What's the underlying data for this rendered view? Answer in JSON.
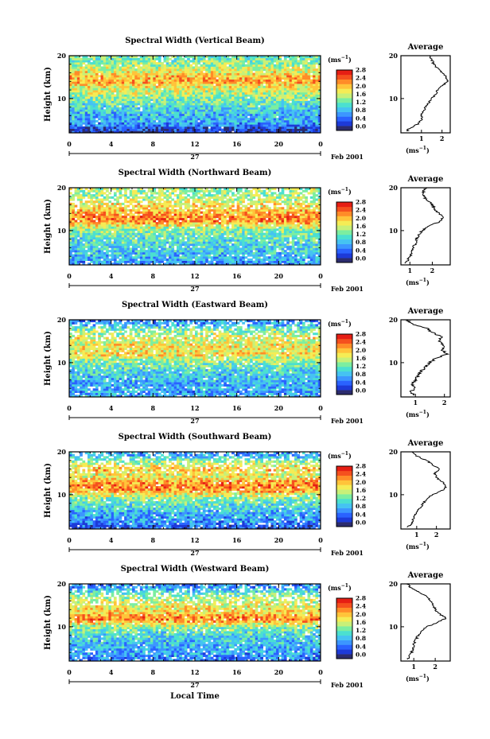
{
  "figure": {
    "colorbar_ticks": [
      "2.8",
      "2.4",
      "2.0",
      "1.6",
      "1.2",
      "0.8",
      "0.4",
      "0.0"
    ],
    "colorbar_unit": "(ms",
    "unit_exp": "−1",
    "unit_close": ")",
    "avg_title": "Average",
    "height_label": "Height (km)",
    "time_ticks": [
      "0",
      "4",
      "8",
      "12",
      "16",
      "20",
      "0"
    ],
    "y_ticks": [
      "20",
      "10"
    ],
    "date_day": "27",
    "date_label": "Feb 2001",
    "xlabel": "Local Time",
    "colors": [
      "#2c2c6e",
      "#1d3ad8",
      "#2a62ff",
      "#3c96ff",
      "#45c3f2",
      "#4be0d0",
      "#7ceea0",
      "#c8f078",
      "#f5ec55",
      "#ffc43a",
      "#ff8c28",
      "#f5501e",
      "#e61e14"
    ]
  },
  "chart_data": [
    {
      "type": "heatmap",
      "title": "Spectral Width (Vertical Beam)",
      "x_range_hours": [
        0,
        24
      ],
      "y_range_km": [
        2,
        20
      ],
      "color_range": [
        0.0,
        3.0
      ],
      "profile": [
        [
          2.4,
          0.3
        ],
        [
          3,
          0.4
        ],
        [
          4,
          0.8
        ],
        [
          5,
          1.0
        ],
        [
          6,
          1.0
        ],
        [
          7,
          1.1
        ],
        [
          8,
          1.2
        ],
        [
          9,
          1.35
        ],
        [
          10,
          1.5
        ],
        [
          11,
          1.7
        ],
        [
          12,
          1.8
        ],
        [
          13,
          2.0
        ],
        [
          14,
          2.3
        ],
        [
          15,
          2.2
        ],
        [
          16,
          2.0
        ],
        [
          17,
          1.8
        ],
        [
          18,
          1.6
        ],
        [
          19,
          1.5
        ],
        [
          20,
          1.4
        ]
      ],
      "avg_xticks": [
        "1",
        "2"
      ],
      "avg_xlim": [
        0,
        2.4
      ]
    },
    {
      "type": "heatmap",
      "title": "Spectral Width (Northward Beam)",
      "x_range_hours": [
        0,
        24
      ],
      "y_range_km": [
        2,
        20
      ],
      "color_range": [
        0.0,
        3.0
      ],
      "profile": [
        [
          2.4,
          0.8
        ],
        [
          3,
          0.9
        ],
        [
          4,
          1.0
        ],
        [
          5,
          1.1
        ],
        [
          6,
          1.15
        ],
        [
          7,
          1.25
        ],
        [
          8,
          1.3
        ],
        [
          9,
          1.4
        ],
        [
          10,
          1.55
        ],
        [
          11,
          1.8
        ],
        [
          12,
          2.3
        ],
        [
          13,
          2.5
        ],
        [
          14,
          2.3
        ],
        [
          15,
          2.1
        ],
        [
          16,
          2.0
        ],
        [
          17,
          1.8
        ],
        [
          18,
          1.6
        ],
        [
          19,
          1.6
        ],
        [
          20,
          1.7
        ]
      ],
      "avg_xticks": [
        "1",
        "2"
      ],
      "avg_xlim": [
        0.6,
        2.8
      ]
    },
    {
      "type": "heatmap",
      "title": "Spectral Width (Eastward Beam)",
      "x_range_hours": [
        0,
        24
      ],
      "y_range_km": [
        2,
        20
      ],
      "color_range": [
        0.0,
        3.0
      ],
      "profile": [
        [
          2.4,
          1.0
        ],
        [
          3,
          0.8
        ],
        [
          4,
          1.0
        ],
        [
          5,
          0.9
        ],
        [
          6,
          1.0
        ],
        [
          7,
          1.1
        ],
        [
          8,
          1.2
        ],
        [
          9,
          1.35
        ],
        [
          10,
          1.5
        ],
        [
          11,
          1.7
        ],
        [
          12,
          2.1
        ],
        [
          13,
          1.9
        ],
        [
          14,
          2.0
        ],
        [
          15,
          1.8
        ],
        [
          16,
          1.9
        ],
        [
          17,
          1.6
        ],
        [
          18,
          1.4
        ],
        [
          19,
          0.9
        ],
        [
          20,
          0.7
        ]
      ],
      "avg_xticks": [
        "1",
        "2"
      ],
      "avg_xlim": [
        0.5,
        2.2
      ]
    },
    {
      "type": "heatmap",
      "title": "Spectral Width (Southward Beam)",
      "x_range_hours": [
        0,
        24
      ],
      "y_range_km": [
        2,
        20
      ],
      "color_range": [
        0.0,
        3.0
      ],
      "profile": [
        [
          2.4,
          0.5
        ],
        [
          3,
          0.7
        ],
        [
          4,
          0.8
        ],
        [
          5,
          0.9
        ],
        [
          6,
          1.0
        ],
        [
          7,
          1.2
        ],
        [
          8,
          1.35
        ],
        [
          9,
          1.5
        ],
        [
          10,
          1.8
        ],
        [
          11,
          2.3
        ],
        [
          12,
          2.5
        ],
        [
          13,
          2.3
        ],
        [
          14,
          2.0
        ],
        [
          15,
          1.9
        ],
        [
          16,
          2.2
        ],
        [
          17,
          1.8
        ],
        [
          18,
          1.5
        ],
        [
          19,
          1.0
        ],
        [
          20,
          0.8
        ]
      ],
      "avg_xticks": [
        "1",
        "2"
      ],
      "avg_xlim": [
        0.2,
        2.7
      ]
    },
    {
      "type": "heatmap",
      "title": "Spectral Width (Westward Beam)",
      "x_range_hours": [
        0,
        24
      ],
      "y_range_km": [
        2,
        20
      ],
      "color_range": [
        0.0,
        3.0
      ],
      "profile": [
        [
          2.4,
          0.7
        ],
        [
          3,
          0.8
        ],
        [
          4,
          0.9
        ],
        [
          5,
          0.95
        ],
        [
          6,
          1.0
        ],
        [
          7,
          1.1
        ],
        [
          8,
          1.2
        ],
        [
          9,
          1.35
        ],
        [
          10,
          1.6
        ],
        [
          11,
          2.1
        ],
        [
          12,
          2.5
        ],
        [
          13,
          2.2
        ],
        [
          14,
          2.0
        ],
        [
          15,
          1.9
        ],
        [
          16,
          1.8
        ],
        [
          17,
          1.6
        ],
        [
          18,
          1.3
        ],
        [
          19,
          0.9
        ],
        [
          20,
          0.7
        ]
      ],
      "avg_xticks": [
        "1",
        "2"
      ],
      "avg_xlim": [
        0.4,
        2.7
      ]
    }
  ]
}
